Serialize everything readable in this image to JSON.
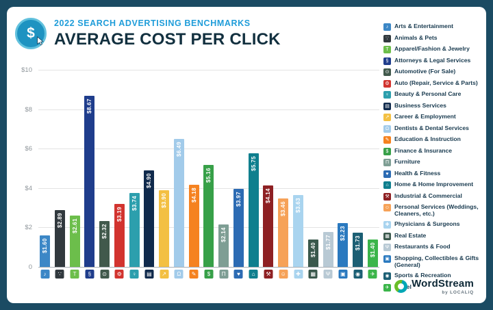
{
  "header": {
    "kicker": "2022 SEARCH ADVERTISING BENCHMARKS",
    "title": "AVERAGE COST PER CLICK",
    "badge_glyph": "$"
  },
  "chart_data": {
    "type": "bar",
    "title": "AVERAGE COST PER CLICK",
    "subtitle": "2022 SEARCH ADVERTISING BENCHMARKS",
    "xlabel": "",
    "ylabel": "",
    "ylim": [
      0,
      10
    ],
    "grid": true,
    "legend_position": "right",
    "yticks": [
      {
        "label": "$10",
        "value": 10
      },
      {
        "label": "$8",
        "value": 8
      },
      {
        "label": "$6",
        "value": 6
      },
      {
        "label": "$4",
        "value": 4
      },
      {
        "label": "$2",
        "value": 2
      },
      {
        "label": "0",
        "value": 0
      }
    ],
    "categories": [
      "Arts & Entertainment",
      "Animals & Pets",
      "Apparel/Fashion & Jewelry",
      "Attorneys & Legal Services",
      "Automotive (For Sale)",
      "Auto (Repair, Service & Parts)",
      "Beauty & Personal Care",
      "Business Services",
      "Career & Employment",
      "Dentists & Dental Services",
      "Education & Instruction",
      "Finance & Insurance",
      "Furniture",
      "Health & Fitness",
      "Home & Home Improvement",
      "Industrial & Commercial",
      "Personal Services (Weddings, Cleaners, etc.)",
      "Physicians & Surgeons",
      "Real Estate",
      "Restaurants & Food",
      "Shopping, Collectibles & Gifts (General)",
      "Sports & Recreation",
      "Travel"
    ],
    "values": [
      1.6,
      2.89,
      2.61,
      8.67,
      2.32,
      3.19,
      3.74,
      4.9,
      3.9,
      6.49,
      4.18,
      5.16,
      2.14,
      3.97,
      5.75,
      4.14,
      3.46,
      3.63,
      1.4,
      1.77,
      2.23,
      1.73,
      1.4
    ],
    "bar_labels": [
      "$1.60",
      "$2.89",
      "$2.61",
      "$8.67",
      "$2.32",
      "$3.19",
      "$3.74",
      "$4.90",
      "$3.90",
      "$6.49",
      "$4.18",
      "$5.16",
      "$2.14",
      "$3.97",
      "$5.75",
      "$4.14",
      "$3.46",
      "$3.63",
      "$1.40",
      "$1.77",
      "$2.23",
      "$1.73",
      "$1.40"
    ],
    "colors": [
      "#3C87C6",
      "#31393E",
      "#6CBE4B",
      "#1F3D8C",
      "#41594C",
      "#D2342F",
      "#2C9FAD",
      "#102A4C",
      "#F3C043",
      "#A2CBEA",
      "#F58220",
      "#37A048",
      "#7E9E94",
      "#2C6BB3",
      "#0F7F8E",
      "#8E2023",
      "#F6A258",
      "#A9D4EF",
      "#3A584C",
      "#B8C9D4",
      "#2A79BF",
      "#1C5F74",
      "#3BB54A"
    ],
    "icon_names": [
      "music-note-icon",
      "paw-icon",
      "tshirt-icon",
      "legal-section-icon",
      "car-icon",
      "wrench-gear-icon",
      "beauty-icon",
      "briefcase-icon",
      "career-growth-icon",
      "tooth-icon",
      "pencil-icon",
      "dollar-icon",
      "furniture-icon",
      "heart-icon",
      "house-icon",
      "hammer-icon",
      "person-icon",
      "medical-cross-icon",
      "building-icon",
      "restaurant-fork-icon",
      "gift-box-icon",
      "ball-icon",
      "plane-icon"
    ],
    "icon_glyphs": [
      "♪",
      "∵",
      "T",
      "§",
      "⊙",
      "⚙",
      "♀",
      "▤",
      "↗",
      "Ω",
      "✎",
      "$",
      "Π",
      "♥",
      "⌂",
      "⚒",
      "☺",
      "✚",
      "▦",
      "Ψ",
      "▣",
      "◉",
      "✈"
    ]
  },
  "footer": {
    "brand": "WordStream",
    "sub": "by LOCALiQ"
  },
  "colors": {
    "frame": "#1B4B63",
    "kicker": "#1E9CD9",
    "title": "#12303F",
    "grid": "#E3E3E3",
    "axis_text": "#8F969B",
    "legend_text": "#17394E",
    "badge_fill": "#1E93C1",
    "badge_ring": "#62C1DD",
    "logo_green": "#69BE28",
    "logo_teal": "#00A7B5"
  }
}
